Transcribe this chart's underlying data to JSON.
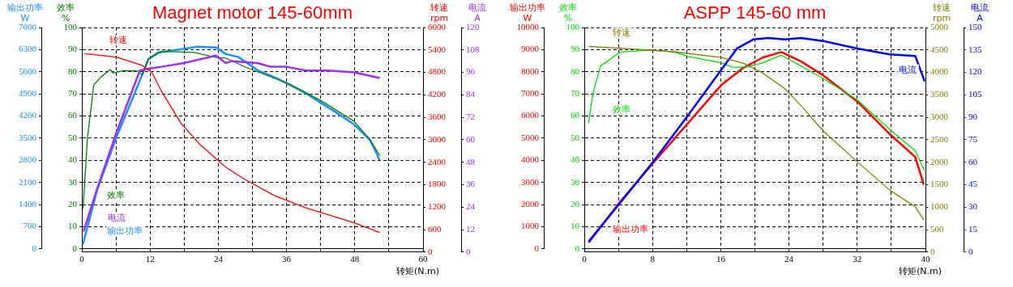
{
  "chart_data": [
    {
      "type": "line",
      "title": "Magnet motor 145-60mm",
      "xlabel": "转矩(N.m)",
      "ylabel": "效率\n%",
      "y2label": "输出功率\nW",
      "xlim": [
        0,
        60
      ],
      "xticks": [
        0,
        {
          "value": 6,
          "label": null
        },
        12,
        {
          "value": 18,
          "label": null
        },
        24,
        {
          "value": 30,
          "label": null
        },
        36,
        {
          "value": 42,
          "label": null
        },
        48,
        {
          "value": 54,
          "label": null
        },
        60
      ],
      "ylim": [
        0,
        100
      ],
      "yticks": [
        0,
        10,
        20,
        30,
        40,
        50,
        60,
        70,
        80,
        90,
        100
      ],
      "y2lim": [
        0,
        7000
      ],
      "y2ticks": [
        0,
        700,
        1400,
        2100,
        2800,
        3500,
        4200,
        4900,
        5600,
        6300,
        7000
      ],
      "grid": true,
      "marker": "none",
      "line_style": "solid",
      "series": [
        {
          "name": "效率",
          "color": "#008000",
          "x": [
            0.2,
            1,
            2.1,
            3.3,
            5,
            5.5,
            7.2,
            10,
            10.6,
            11.7,
            14,
            19.6,
            23.6,
            25.3,
            28.7,
            30.9,
            36.6,
            42.2,
            47.9,
            50.7,
            52.4
          ],
          "values": [
            18,
            50.6,
            74,
            77.5,
            81,
            79.4,
            80.5,
            80.3,
            78.4,
            85.7,
            89.2,
            88.8,
            86.5,
            86.2,
            82.2,
            80,
            74.4,
            66.7,
            57.6,
            49.2,
            42.1
          ]
        },
        {
          "name": "输出功率",
          "color": "#1e90ff",
          "axis": "y2",
          "x": [
            0.2,
            2.7,
            6.1,
            9.5,
            11.7,
            13.4,
            17.4,
            20.2,
            23.6,
            25.3,
            27.5,
            30.9,
            34.3,
            39.4,
            45,
            47.9,
            50.7,
            52.4
          ],
          "values": [
            150,
            1870,
            3540,
            5010,
            6000,
            6210,
            6310,
            6390,
            6370,
            6160,
            6070,
            5650,
            5390,
            4920,
            4280,
            3930,
            3440,
            2800
          ]
        }
      ]
    },
    {
      "type": "line",
      "ylabel": "转速\nrpm",
      "y2label": "电流\nA",
      "tick_labels": "y",
      "xlim": [
        0,
        60
      ],
      "ylim": [
        0,
        6000
      ],
      "yticks": [
        0,
        600,
        1200,
        1800,
        2400,
        3000,
        3600,
        4200,
        4800,
        5400,
        6000
      ],
      "y2lim": [
        0,
        120
      ],
      "y2ticks": [
        0,
        12,
        24,
        36,
        48,
        60,
        72,
        84,
        96,
        108,
        120
      ],
      "marker": "none",
      "line_style": "solid",
      "series": [
        {
          "name": "转速",
          "color": "#ff0000",
          "x": [
            0.5,
            6.1,
            10.6,
            12.3,
            14,
            17.4,
            20.8,
            25.3,
            28.7,
            33.7,
            39.4,
            47.9,
            52.4
          ],
          "values": [
            5300,
            5210,
            4990,
            4800,
            4300,
            3450,
            2870,
            2270,
            1940,
            1520,
            1180,
            780,
            520
          ]
        },
        {
          "name": "电流",
          "color": "#9b30ff",
          "axis": "y2",
          "x": [
            0.3,
            2.7,
            6.1,
            10.2,
            11.7,
            14,
            17.9,
            23.6,
            25.3,
            26.4,
            30.9,
            33.2,
            36,
            39.4,
            43.3,
            47.9,
            52.4
          ],
          "values": [
            11,
            34,
            64,
            97,
            98,
            99,
            101,
            105,
            101,
            102,
            101,
            99,
            99,
            97,
            97,
            96,
            93
          ]
        }
      ]
    },
    {
      "type": "line",
      "title": "ASPP 145-60 mm",
      "xlabel": "转矩(N.m)",
      "ylabel": "效率\n%",
      "y2label": "输出功率\nW",
      "xlim": [
        0,
        40
      ],
      "xticks": [
        0,
        {
          "value": 4,
          "label": null
        },
        8,
        {
          "value": 12,
          "label": null
        },
        16,
        {
          "value": 20,
          "label": null
        },
        24,
        {
          "value": 28,
          "label": null
        },
        32,
        {
          "value": 36,
          "label": null
        },
        40
      ],
      "ylim": [
        0,
        100
      ],
      "yticks": [
        0,
        10,
        20,
        30,
        40,
        50,
        60,
        70,
        80,
        90,
        100
      ],
      "y2lim": [
        0,
        10000
      ],
      "y2ticks": [
        0,
        1000,
        2000,
        3000,
        4000,
        5000,
        6000,
        7000,
        8000,
        9000,
        10000
      ],
      "grid": true,
      "marker": "none",
      "line_style": "solid",
      "series": [
        {
          "name": "效率",
          "color": "#00e000",
          "x": [
            0.5,
            1,
            1.9,
            4.2,
            7.9,
            10.5,
            12.3,
            16.1,
            17.5,
            19,
            20.9,
            23.1,
            25.4,
            28,
            32,
            35.8,
            38.8,
            39.9
          ],
          "values": [
            56.8,
            70,
            82.6,
            88.9,
            89.8,
            88.9,
            86.8,
            84,
            81.9,
            82.2,
            84,
            87.5,
            82.6,
            77,
            67.3,
            54,
            44.3,
            35.2
          ]
        },
        {
          "name": "输出功率",
          "color": "#ff0000",
          "axis": "y2",
          "x": [
            0.5,
            4.2,
            7.9,
            12,
            16.1,
            18.7,
            20.9,
            23.1,
            25.4,
            28,
            32,
            35.8,
            38.8,
            39.8
          ],
          "values": [
            280,
            2130,
            3800,
            5610,
            7420,
            8190,
            8640,
            8890,
            8470,
            7840,
            6660,
            5190,
            4150,
            2900
          ]
        }
      ]
    },
    {
      "type": "line",
      "ylabel": "转速\nrpm",
      "y2label": "电流\nA",
      "tick_labels": "y",
      "xlim": [
        0,
        40
      ],
      "ylim": [
        0,
        5000
      ],
      "yticks": [
        0,
        500,
        1000,
        1500,
        2000,
        2500,
        3000,
        3500,
        4000,
        4500,
        5000
      ],
      "y2lim": [
        0,
        150
      ],
      "y2ticks": [
        0,
        15,
        30,
        45,
        60,
        75,
        90,
        105,
        120,
        135,
        150
      ],
      "marker": "none",
      "line_style": "solid",
      "series": [
        {
          "name": "转速",
          "color": "#808000",
          "x": [
            0.5,
            4.9,
            10.5,
            16.1,
            18.7,
            20.9,
            23.5,
            25.4,
            28,
            32,
            35.8,
            38.8,
            39.8
          ],
          "values": [
            4580,
            4530,
            4460,
            4330,
            4200,
            3990,
            3640,
            3260,
            2700,
            2010,
            1380,
            1010,
            720
          ]
        },
        {
          "name": "电流",
          "color": "#0000ff",
          "axis": "y2",
          "x": [
            0.5,
            3.8,
            7.9,
            12,
            16.1,
            17.9,
            19.8,
            21.6,
            23.5,
            25.4,
            28,
            32,
            35.8,
            38.8,
            39.9
          ],
          "values": [
            7,
            30,
            59,
            90,
            122,
            136,
            142,
            143,
            142,
            143,
            141,
            136,
            132,
            131,
            114
          ]
        }
      ]
    }
  ]
}
